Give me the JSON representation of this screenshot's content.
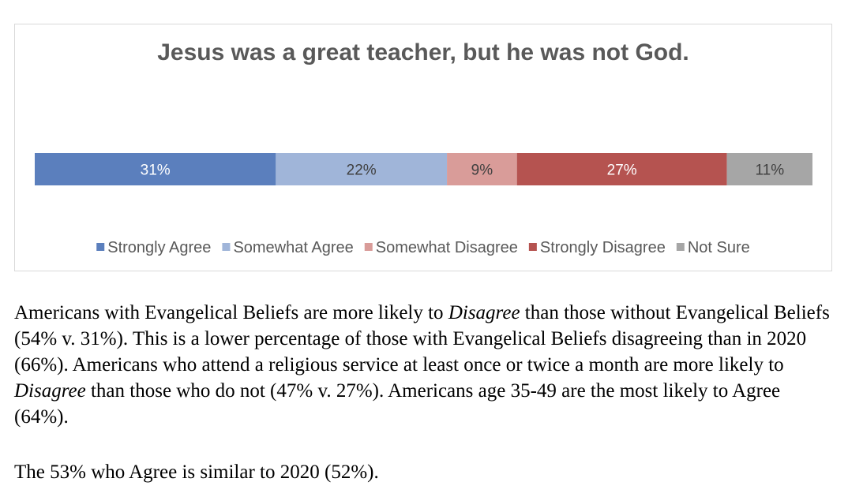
{
  "chart_data": {
    "type": "bar",
    "stacked": true,
    "orientation": "horizontal",
    "title": "Jesus was a great teacher, but he was not God.",
    "legend_position": "bottom",
    "series": [
      {
        "name": "Strongly Agree",
        "value": 31,
        "label": "31%",
        "color": "#5b7fbd",
        "label_color": "#ffffff"
      },
      {
        "name": "Somewhat Agree",
        "value": 22,
        "label": "22%",
        "color": "#a0b5d9",
        "label_color": "#404040"
      },
      {
        "name": "Somewhat Disagree",
        "value": 9,
        "label": "9%",
        "color": "#d99c99",
        "label_color": "#404040"
      },
      {
        "name": "Strongly Disagree",
        "value": 27,
        "label": "27%",
        "color": "#b55350",
        "label_color": "#ffffff"
      },
      {
        "name": "Not Sure",
        "value": 11,
        "label": "11%",
        "color": "#a6a6a6",
        "label_color": "#404040"
      }
    ]
  },
  "caption": {
    "p1_a": "Americans with Evangelical Beliefs are more likely to ",
    "p1_em1": "Disagree",
    "p1_b": " than those without Evangelical Beliefs (54% v. 31%). This is a lower percentage of those with Evangelical Beliefs disagreeing than in 2020 (66%). Americans who attend a religious service at least once or twice a month are more likely to ",
    "p1_em2": "Disagree",
    "p1_c": " than those who do not (47% v. 27%). Americans age 35-49 are the most likely to Agree (64%).",
    "p2": "The 53% who Agree is similar to 2020 (52%)."
  }
}
